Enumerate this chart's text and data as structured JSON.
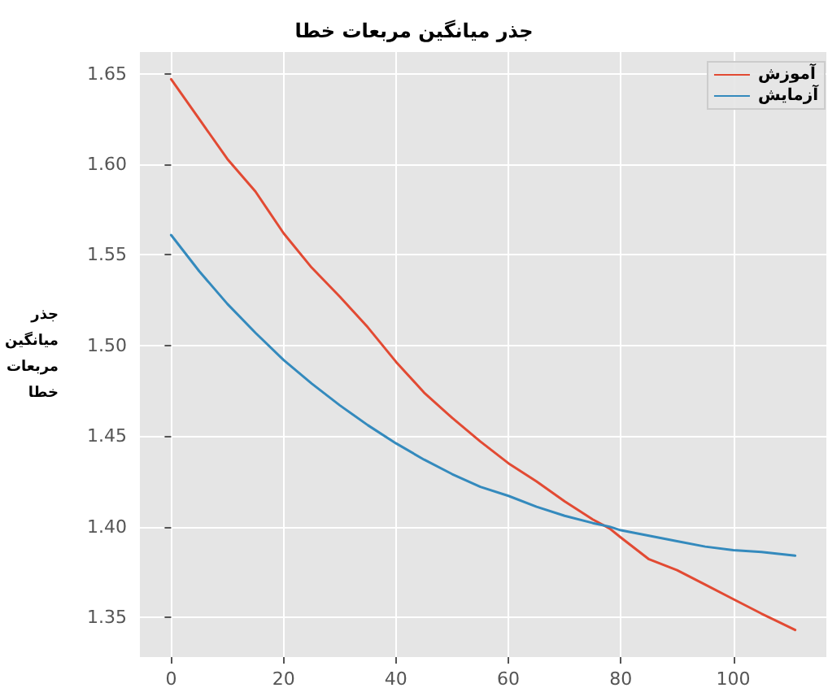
{
  "chart_data": {
    "type": "line",
    "title": "جذر میانگین مربعات خطا",
    "ylabel": "جذر میانگین مربعات خطا",
    "x": [
      0,
      5,
      10,
      15,
      20,
      25,
      30,
      35,
      40,
      45,
      50,
      55,
      60,
      65,
      70,
      75,
      78,
      80,
      85,
      90,
      95,
      100,
      105,
      111
    ],
    "series": [
      {
        "name": "آموزش",
        "color": "#e24a33",
        "values": [
          1.647,
          1.625,
          1.603,
          1.585,
          1.562,
          1.543,
          1.527,
          1.51,
          1.491,
          1.474,
          1.46,
          1.447,
          1.435,
          1.425,
          1.414,
          1.404,
          1.399,
          1.394,
          1.382,
          1.376,
          1.368,
          1.36,
          1.352,
          1.343
        ]
      },
      {
        "name": "آزمایش",
        "color": "#348abd",
        "values": [
          1.561,
          1.541,
          1.523,
          1.507,
          1.492,
          1.479,
          1.467,
          1.456,
          1.446,
          1.437,
          1.429,
          1.422,
          1.417,
          1.411,
          1.406,
          1.402,
          1.4,
          1.398,
          1.395,
          1.392,
          1.389,
          1.387,
          1.386,
          1.384
        ]
      }
    ],
    "xlim": [
      -5.55,
      116.55
    ],
    "xticks": [
      0,
      20,
      40,
      60,
      80,
      100
    ],
    "ylim": [
      1.328,
      1.662
    ],
    "yticks": [
      1.35,
      {
        "value": 1.4,
        "label": "1.40"
      },
      1.45,
      {
        "value": 1.5,
        "label": "1.50"
      },
      1.55,
      {
        "value": 1.6,
        "label": "1.60"
      },
      1.65
    ],
    "grid": true,
    "legend": "top right",
    "marker": "none",
    "line_style": "solid"
  }
}
